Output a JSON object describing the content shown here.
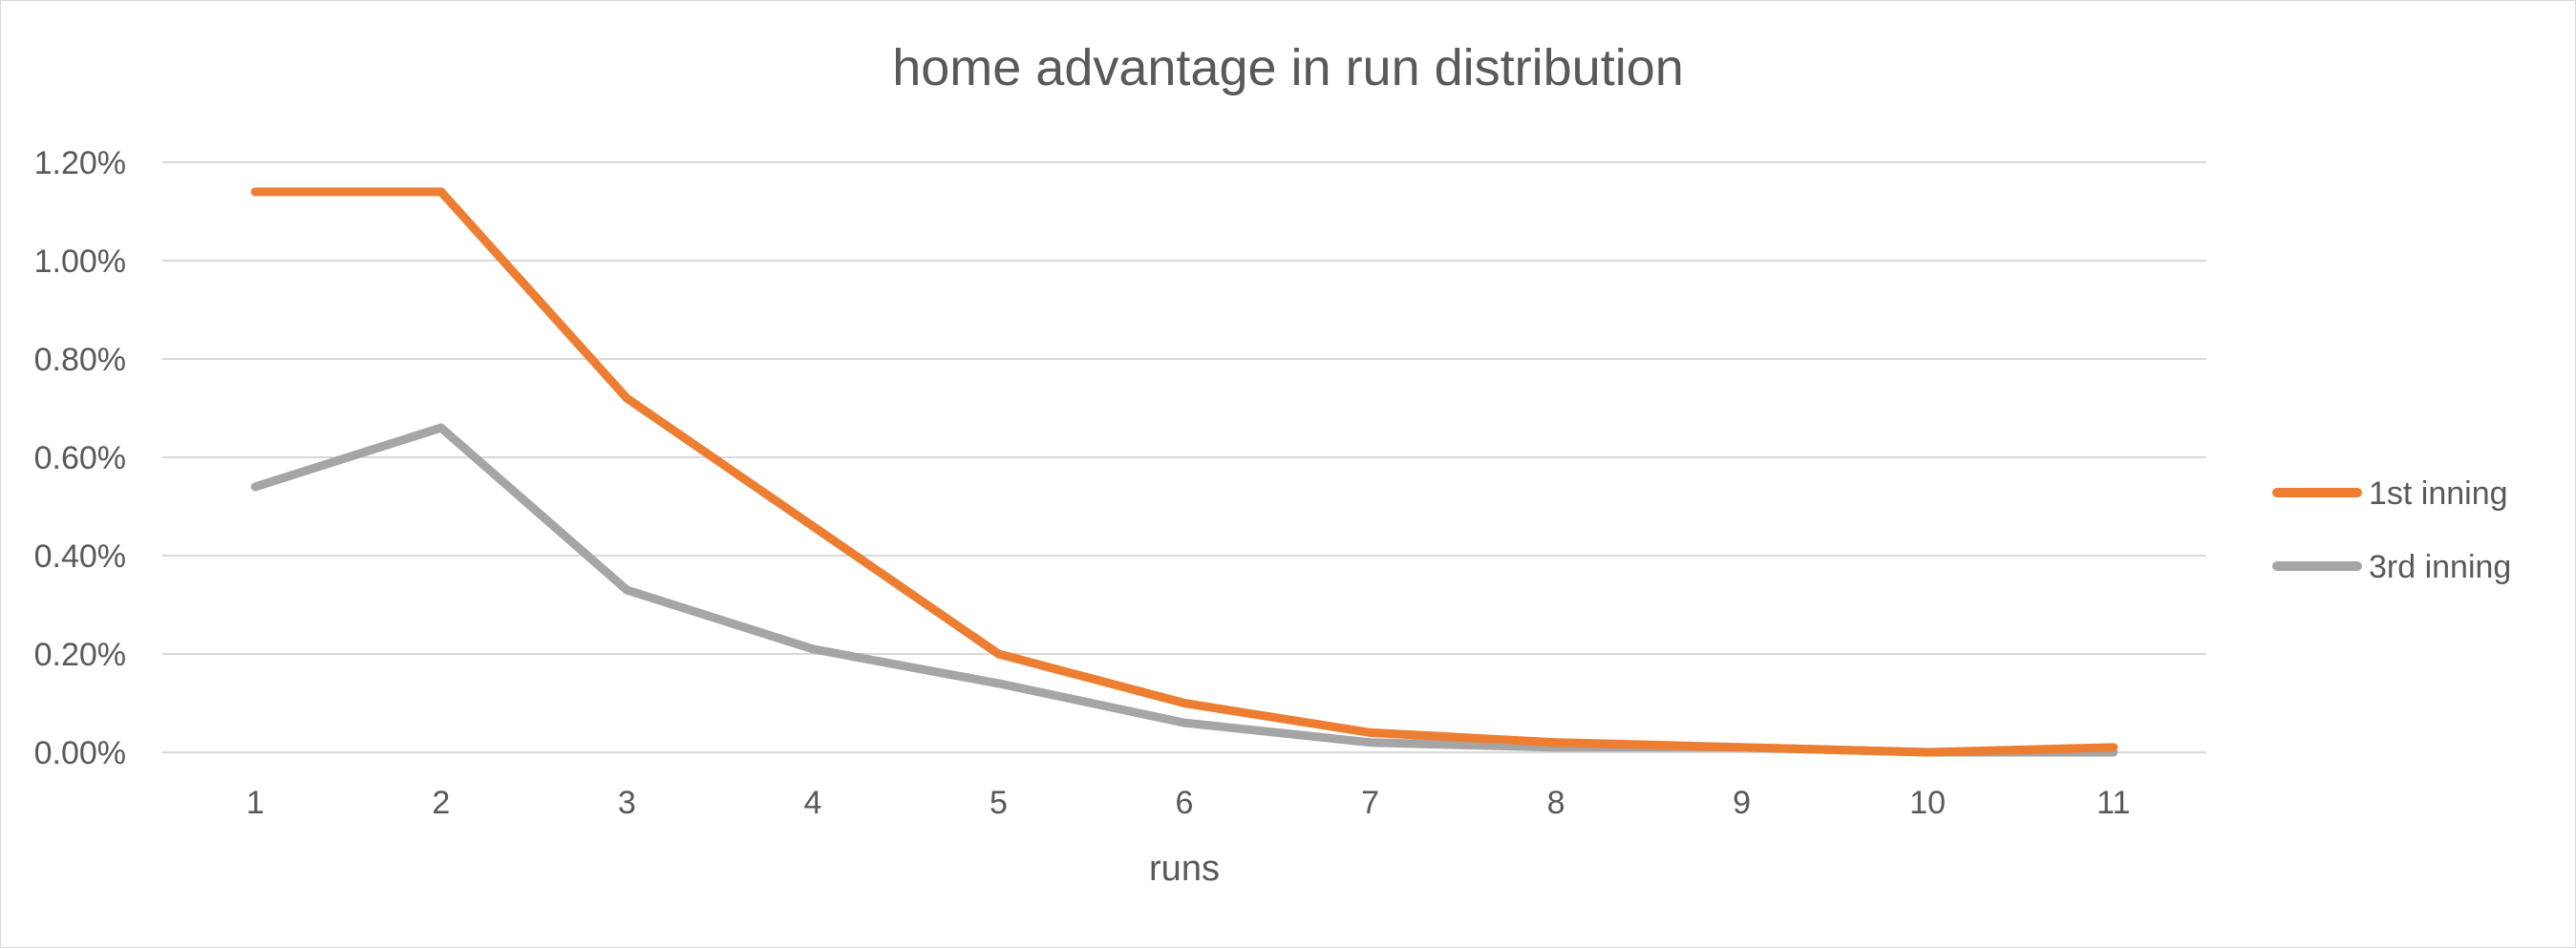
{
  "chart_data": {
    "type": "line",
    "title": "home advantage in run distribution",
    "xlabel": "runs",
    "ylabel": "",
    "categories": [
      "1",
      "2",
      "3",
      "4",
      "5",
      "6",
      "7",
      "8",
      "9",
      "10",
      "11"
    ],
    "y_tick_labels": [
      "0.00%",
      "0.20%",
      "0.40%",
      "0.60%",
      "0.80%",
      "1.00%",
      "1.20%"
    ],
    "ylim": [
      0,
      1.2
    ],
    "y_unit": "percent",
    "grid": true,
    "legend_position": "right",
    "series": [
      {
        "name": "1st inning",
        "color": "#ED7D31",
        "values": [
          1.14,
          1.14,
          0.72,
          0.46,
          0.2,
          0.1,
          0.04,
          0.02,
          0.01,
          0.0,
          0.01
        ]
      },
      {
        "name": "3rd inning",
        "color": "#A5A5A5",
        "values": [
          0.54,
          0.66,
          0.33,
          0.21,
          0.14,
          0.06,
          0.02,
          0.01,
          0.01,
          0.0,
          0.0
        ]
      }
    ]
  }
}
